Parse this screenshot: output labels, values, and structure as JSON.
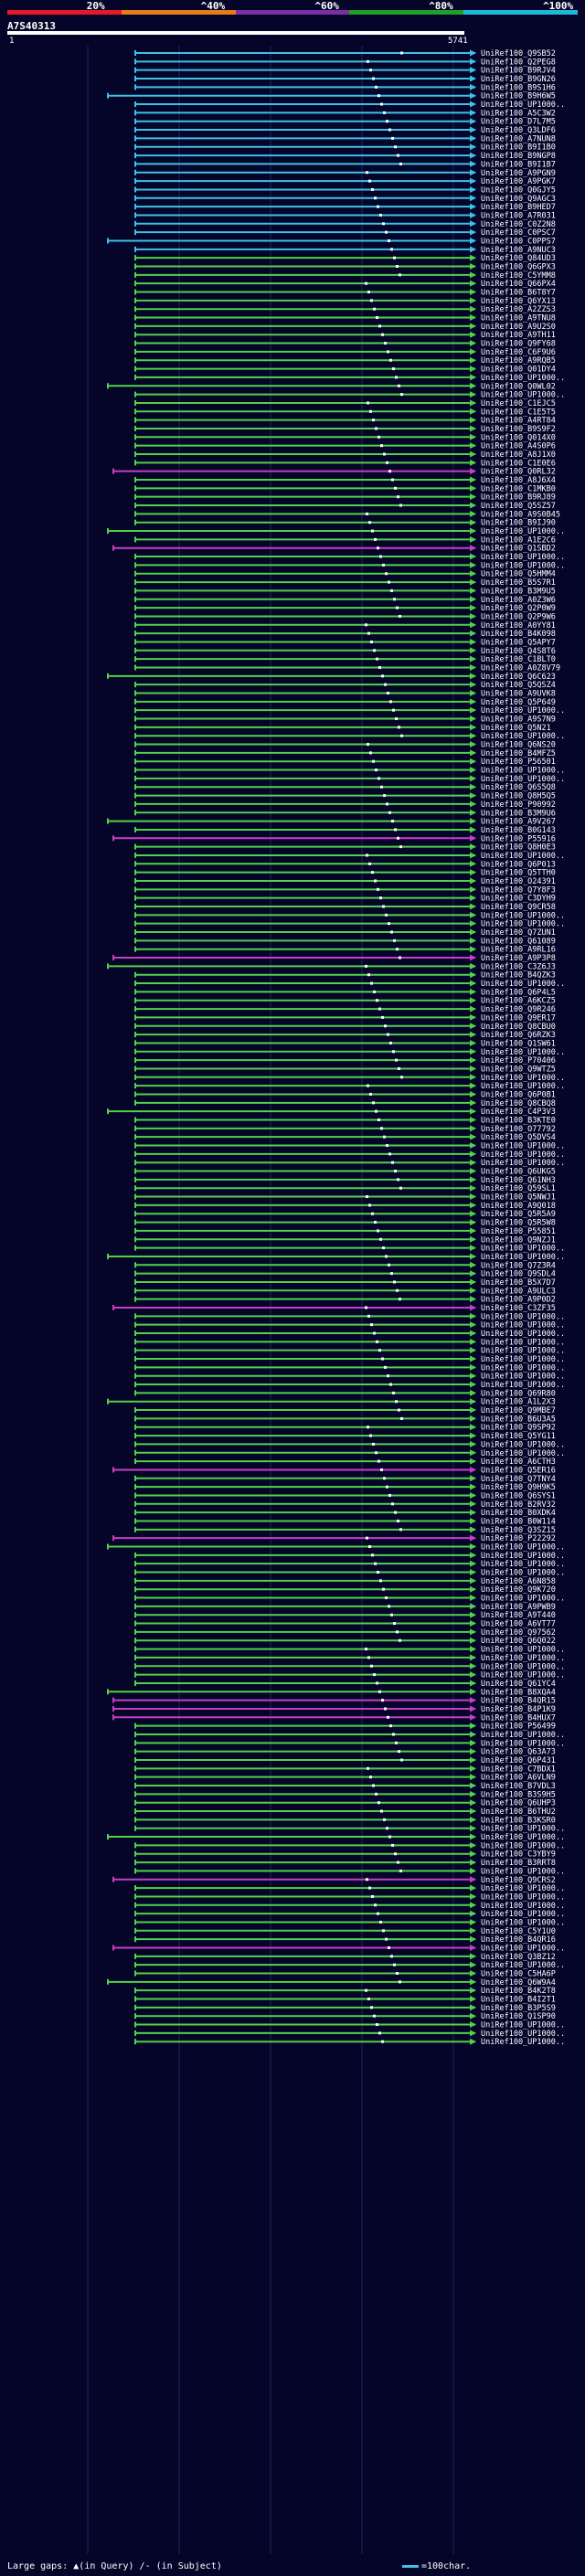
{
  "scale": {
    "labels": [
      "20%",
      "^40%",
      "^60%",
      "^80%",
      "^100%"
    ],
    "bands": [
      "#e8182a",
      "#e87b1e",
      "#7a2fa3",
      "#1f9e2b",
      "#1fb9d8"
    ]
  },
  "query": {
    "id": "A7S40313",
    "start": "1",
    "end": "5741"
  },
  "colors": {
    "cyan": "#3ec1e6",
    "green": "#52d246",
    "magenta": "#c83ec3",
    "dark": "#060630",
    "grid": "#232356"
  },
  "hits": [
    {
      "label": "UniRef100_Q9SB52",
      "color": "cyan"
    },
    {
      "label": "UniRef100_Q2PEG8",
      "color": "cyan"
    },
    {
      "label": "UniRef100_B9RJV4",
      "color": "cyan"
    },
    {
      "label": "UniRef100_B9GN26",
      "color": "cyan"
    },
    {
      "label": "UniRef100_B9S1H6",
      "color": "cyan"
    },
    {
      "label": "UniRef100_B9H6W5",
      "color": "cyan"
    },
    {
      "label": "UniRef100_UP1000..",
      "color": "cyan"
    },
    {
      "label": "UniRef100_A5C3W2",
      "color": "cyan"
    },
    {
      "label": "UniRef100_D7L7M5",
      "color": "cyan"
    },
    {
      "label": "UniRef100_Q3LDF6",
      "color": "cyan"
    },
    {
      "label": "UniRef100_A7NUN8",
      "color": "cyan"
    },
    {
      "label": "UniRef100_B9I1B0",
      "color": "cyan"
    },
    {
      "label": "UniRef100_B9NGP8",
      "color": "cyan"
    },
    {
      "label": "UniRef100_B9I1B7",
      "color": "cyan"
    },
    {
      "label": "UniRef100_A9PGN9",
      "color": "cyan"
    },
    {
      "label": "UniRef100_A9PGK7",
      "color": "cyan"
    },
    {
      "label": "UniRef100_Q0GJY5",
      "color": "cyan"
    },
    {
      "label": "UniRef100_Q9AGC3",
      "color": "cyan"
    },
    {
      "label": "UniRef100_B9HED7",
      "color": "cyan"
    },
    {
      "label": "UniRef100_A7R031",
      "color": "cyan"
    },
    {
      "label": "UniRef100_C0Z2N8",
      "color": "cyan"
    },
    {
      "label": "UniRef100_C0PSC7",
      "color": "cyan"
    },
    {
      "label": "UniRef100_C0PPS7",
      "color": "cyan"
    },
    {
      "label": "UniRef100_A9NUC3",
      "color": "cyan"
    },
    {
      "label": "UniRef100_Q84UD3",
      "color": "green"
    },
    {
      "label": "UniRef100_Q6GPX3",
      "color": "green"
    },
    {
      "label": "UniRef100_C5YMM8",
      "color": "green"
    },
    {
      "label": "UniRef100_Q66PX4",
      "color": "green"
    },
    {
      "label": "UniRef100_B6T8Y7",
      "color": "green"
    },
    {
      "label": "UniRef100_Q6YX13",
      "color": "green"
    },
    {
      "label": "UniRef100_A2ZZS3",
      "color": "green"
    },
    {
      "label": "UniRef100_A9TNU8",
      "color": "green"
    },
    {
      "label": "UniRef100_A9U2S0",
      "color": "green"
    },
    {
      "label": "UniRef100_A9TH11",
      "color": "green"
    },
    {
      "label": "UniRef100_Q9FY68",
      "color": "green"
    },
    {
      "label": "UniRef100_C6F9U6",
      "color": "green"
    },
    {
      "label": "UniRef100_A9RQB5",
      "color": "green"
    },
    {
      "label": "UniRef100_Q01DY4",
      "color": "green"
    },
    {
      "label": "UniRef100_UP1000..",
      "color": "green"
    },
    {
      "label": "UniRef100_Q0WL02",
      "color": "green"
    },
    {
      "label": "UniRef100_UP1000..",
      "color": "green"
    },
    {
      "label": "UniRef100_C1EJC5",
      "color": "green"
    },
    {
      "label": "UniRef100_C1E5T5",
      "color": "green"
    },
    {
      "label": "UniRef100_A4RT84",
      "color": "green"
    },
    {
      "label": "UniRef100_B9S9F2",
      "color": "green"
    },
    {
      "label": "UniRef100_Q014X0",
      "color": "green"
    },
    {
      "label": "UniRef100_A4S0P6",
      "color": "green"
    },
    {
      "label": "UniRef100_A8J1X0",
      "color": "green"
    },
    {
      "label": "UniRef100_C1E0E6",
      "color": "green"
    },
    {
      "label": "UniRef100_Q0RL32",
      "color": "magenta"
    },
    {
      "label": "UniRef100_A8J6X4",
      "color": "green"
    },
    {
      "label": "UniRef100_C1MKB0",
      "color": "green"
    },
    {
      "label": "UniRef100_B9RJ89",
      "color": "green"
    },
    {
      "label": "UniRef100_Q5SZ57",
      "color": "green"
    },
    {
      "label": "UniRef100_A9S0B45",
      "color": "green"
    },
    {
      "label": "UniRef100_B9IJ90",
      "color": "green"
    },
    {
      "label": "UniRef100_UP1000..",
      "color": "green"
    },
    {
      "label": "UniRef100_A1E2C6",
      "color": "green"
    },
    {
      "label": "UniRef100_Q1SBD2",
      "color": "magenta"
    },
    {
      "label": "UniRef100_UP1000..",
      "color": "green"
    },
    {
      "label": "UniRef100_UP1000..",
      "color": "green"
    },
    {
      "label": "UniRef100_Q5HMM4",
      "color": "green"
    },
    {
      "label": "UniRef100_B5S7R1",
      "color": "green"
    },
    {
      "label": "UniRef100_B3M9U5",
      "color": "green"
    },
    {
      "label": "UniRef100_A0Z3W6",
      "color": "green"
    },
    {
      "label": "UniRef100_Q2P0W9",
      "color": "green"
    },
    {
      "label": "UniRef100_Q2P9W6",
      "color": "green"
    },
    {
      "label": "UniRef100_A0YY81",
      "color": "green"
    },
    {
      "label": "UniRef100_B4K098",
      "color": "green"
    },
    {
      "label": "UniRef100_Q5APY7",
      "color": "green"
    },
    {
      "label": "UniRef100_Q4S8T6",
      "color": "green"
    },
    {
      "label": "UniRef100_C1BLT0",
      "color": "green"
    },
    {
      "label": "UniRef100_A0Z8V79",
      "color": "green"
    },
    {
      "label": "UniRef100_Q6C623",
      "color": "green"
    },
    {
      "label": "UniRef100_Q5QSZ4",
      "color": "green"
    },
    {
      "label": "UniRef100_A9UVK8",
      "color": "green"
    },
    {
      "label": "UniRef100_Q5P649",
      "color": "green"
    },
    {
      "label": "UniRef100_UP1000..",
      "color": "green"
    },
    {
      "label": "UniRef100_A9S7N9",
      "color": "green"
    },
    {
      "label": "UniRef100_Q5N21",
      "color": "green"
    },
    {
      "label": "UniRef100_UP1000..",
      "color": "green"
    },
    {
      "label": "UniRef100_Q6NS20",
      "color": "green"
    },
    {
      "label": "UniRef100_B4MFZ5",
      "color": "green"
    },
    {
      "label": "UniRef100_P56501",
      "color": "green"
    },
    {
      "label": "UniRef100_UP1000..",
      "color": "green"
    },
    {
      "label": "UniRef100_UP1000..",
      "color": "green"
    },
    {
      "label": "UniRef100_Q6S5Q8",
      "color": "green"
    },
    {
      "label": "UniRef100_Q8H5Q5",
      "color": "green"
    },
    {
      "label": "UniRef100_P90992",
      "color": "green"
    },
    {
      "label": "UniRef100_B3M9U6",
      "color": "green"
    },
    {
      "label": "UniRef100_A9V267",
      "color": "green"
    },
    {
      "label": "UniRef100_B0G143",
      "color": "green"
    },
    {
      "label": "UniRef100_P55916",
      "color": "magenta"
    },
    {
      "label": "UniRef100_Q8H0E3",
      "color": "green"
    },
    {
      "label": "UniRef100_UP1000..",
      "color": "green"
    },
    {
      "label": "UniRef100_Q6P013",
      "color": "green"
    },
    {
      "label": "UniRef100_Q5TTH0",
      "color": "green"
    },
    {
      "label": "UniRef100_O24391",
      "color": "green"
    },
    {
      "label": "UniRef100_Q7Y8F3",
      "color": "green"
    },
    {
      "label": "UniRef100_C3DYH9",
      "color": "green"
    },
    {
      "label": "UniRef100_Q9CR58",
      "color": "green"
    },
    {
      "label": "UniRef100_UP1000..",
      "color": "green"
    },
    {
      "label": "UniRef100_UP1000..",
      "color": "green"
    },
    {
      "label": "UniRef100_Q7ZUN1",
      "color": "green"
    },
    {
      "label": "UniRef100_Q61089",
      "color": "green"
    },
    {
      "label": "UniRef100_A9RL16",
      "color": "green"
    },
    {
      "label": "UniRef100_A9P3P8",
      "color": "magenta"
    },
    {
      "label": "UniRef100_C3Z6J3",
      "color": "green"
    },
    {
      "label": "UniRef100_B4QZK3",
      "color": "green"
    },
    {
      "label": "UniRef100_UP1000..",
      "color": "green"
    },
    {
      "label": "UniRef100_Q6P4L5",
      "color": "green"
    },
    {
      "label": "UniRef100_A6KCZ5",
      "color": "green"
    },
    {
      "label": "UniRef100_Q9R246",
      "color": "green"
    },
    {
      "label": "UniRef100_Q9ER17",
      "color": "green"
    },
    {
      "label": "UniRef100_Q8CBU0",
      "color": "green"
    },
    {
      "label": "UniRef100_Q6RZK3",
      "color": "green"
    },
    {
      "label": "UniRef100_Q1SW61",
      "color": "green"
    },
    {
      "label": "UniRef100_UP1000..",
      "color": "green"
    },
    {
      "label": "UniRef100_P70406",
      "color": "green"
    },
    {
      "label": "UniRef100_Q9WTZ5",
      "color": "green"
    },
    {
      "label": "UniRef100_UP1000..",
      "color": "green"
    },
    {
      "label": "UniRef100_UP1000..",
      "color": "green"
    },
    {
      "label": "UniRef100_Q6P0B1",
      "color": "green"
    },
    {
      "label": "UniRef100_Q8CBQ8",
      "color": "green"
    },
    {
      "label": "UniRef100_C4P3V3",
      "color": "green"
    },
    {
      "label": "UniRef100_B3KTE0",
      "color": "green"
    },
    {
      "label": "UniRef100_O77792",
      "color": "green"
    },
    {
      "label": "UniRef100_Q5DVS4",
      "color": "green"
    },
    {
      "label": "UniRef100_UP1000..",
      "color": "green"
    },
    {
      "label": "UniRef100_UP1000..",
      "color": "green"
    },
    {
      "label": "UniRef100_UP1000..",
      "color": "green"
    },
    {
      "label": "UniRef100_Q6UKG5",
      "color": "green"
    },
    {
      "label": "UniRef100_Q61NH3",
      "color": "green"
    },
    {
      "label": "UniRef100_Q59SL1",
      "color": "green"
    },
    {
      "label": "UniRef100_Q5NWJ1",
      "color": "green"
    },
    {
      "label": "UniRef100_A9Q018",
      "color": "green"
    },
    {
      "label": "UniRef100_Q5R5A9",
      "color": "green"
    },
    {
      "label": "UniRef100_Q5R5W8",
      "color": "green"
    },
    {
      "label": "UniRef100_P55851",
      "color": "green"
    },
    {
      "label": "UniRef100_Q9NZJ1",
      "color": "green"
    },
    {
      "label": "UniRef100_UP1000..",
      "color": "green"
    },
    {
      "label": "UniRef100_UP1000..",
      "color": "green"
    },
    {
      "label": "UniRef100_Q7Z3R4",
      "color": "green"
    },
    {
      "label": "UniRef100_Q9SDL4",
      "color": "green"
    },
    {
      "label": "UniRef100_B5X7D7",
      "color": "green"
    },
    {
      "label": "UniRef100_A9ULC3",
      "color": "green"
    },
    {
      "label": "UniRef100_A9P0D2",
      "color": "green"
    },
    {
      "label": "UniRef100_C3ZF35",
      "color": "magenta"
    },
    {
      "label": "UniRef100_UP1000..",
      "color": "green"
    },
    {
      "label": "UniRef100_UP1000..",
      "color": "green"
    },
    {
      "label": "UniRef100_UP1000..",
      "color": "green"
    },
    {
      "label": "UniRef100_UP1000..",
      "color": "green"
    },
    {
      "label": "UniRef100_UP1000..",
      "color": "green"
    },
    {
      "label": "UniRef100_UP1000..",
      "color": "green"
    },
    {
      "label": "UniRef100_UP1000..",
      "color": "green"
    },
    {
      "label": "UniRef100_UP1000..",
      "color": "green"
    },
    {
      "label": "UniRef100_UP1000..",
      "color": "green"
    },
    {
      "label": "UniRef100_Q69R80",
      "color": "green"
    },
    {
      "label": "UniRef100_A1L2X3",
      "color": "green"
    },
    {
      "label": "UniRef100_Q9MBE7",
      "color": "green"
    },
    {
      "label": "UniRef100_B6U3A5",
      "color": "green"
    },
    {
      "label": "UniRef100_Q9SP92",
      "color": "green"
    },
    {
      "label": "UniRef100_Q5YG11",
      "color": "green"
    },
    {
      "label": "UniRef100_UP1000..",
      "color": "green"
    },
    {
      "label": "UniRef100_UP1000..",
      "color": "green"
    },
    {
      "label": "UniRef100_A6CTH3",
      "color": "green"
    },
    {
      "label": "UniRef100_Q5ER16",
      "color": "magenta"
    },
    {
      "label": "UniRef100_Q7TNY4",
      "color": "green"
    },
    {
      "label": "UniRef100_Q9H9K5",
      "color": "green"
    },
    {
      "label": "UniRef100_Q6SYS1",
      "color": "green"
    },
    {
      "label": "UniRef100_B2RV32",
      "color": "green"
    },
    {
      "label": "UniRef100_B0XDK4",
      "color": "green"
    },
    {
      "label": "UniRef100_B0W114",
      "color": "green"
    },
    {
      "label": "UniRef100_Q3SZ15",
      "color": "green"
    },
    {
      "label": "UniRef100_P22292",
      "color": "magenta"
    },
    {
      "label": "UniRef100_UP1000..",
      "color": "green"
    },
    {
      "label": "UniRef100_UP1000..",
      "color": "green"
    },
    {
      "label": "UniRef100_UP1000..",
      "color": "green"
    },
    {
      "label": "UniRef100_UP1000..",
      "color": "green"
    },
    {
      "label": "UniRef100_A6N858",
      "color": "green"
    },
    {
      "label": "UniRef100_Q9K720",
      "color": "green"
    },
    {
      "label": "UniRef100_UP1000..",
      "color": "green"
    },
    {
      "label": "UniRef100_A9PWB9",
      "color": "green"
    },
    {
      "label": "UniRef100_A9T440",
      "color": "green"
    },
    {
      "label": "UniRef100_A6VT77",
      "color": "green"
    },
    {
      "label": "UniRef100_Q97562",
      "color": "green"
    },
    {
      "label": "UniRef100_Q6Q022",
      "color": "green"
    },
    {
      "label": "UniRef100_UP1000..",
      "color": "green"
    },
    {
      "label": "UniRef100_UP1000..",
      "color": "green"
    },
    {
      "label": "UniRef100_UP1000..",
      "color": "green"
    },
    {
      "label": "UniRef100_UP1000..",
      "color": "green"
    },
    {
      "label": "UniRef100_Q61YC4",
      "color": "green"
    },
    {
      "label": "UniRef100_B8XQA4",
      "color": "green"
    },
    {
      "label": "UniRef100_B4QR15",
      "color": "magenta"
    },
    {
      "label": "UniRef100_B4P1K9",
      "color": "magenta"
    },
    {
      "label": "UniRef100_B4HUX7",
      "color": "magenta"
    },
    {
      "label": "UniRef100_P56499",
      "color": "green"
    },
    {
      "label": "UniRef100_UP1000..",
      "color": "green"
    },
    {
      "label": "UniRef100_UP1000..",
      "color": "green"
    },
    {
      "label": "UniRef100_Q63A73",
      "color": "green"
    },
    {
      "label": "UniRef100_Q6P431",
      "color": "green"
    },
    {
      "label": "UniRef100_C7BDX1",
      "color": "green"
    },
    {
      "label": "UniRef100_A6VLN9",
      "color": "green"
    },
    {
      "label": "UniRef100_B7VDL3",
      "color": "green"
    },
    {
      "label": "UniRef100_B3S9H5",
      "color": "green"
    },
    {
      "label": "UniRef100_Q6UHP3",
      "color": "green"
    },
    {
      "label": "UniRef100_B6THU2",
      "color": "green"
    },
    {
      "label": "UniRef100_B3KSR0",
      "color": "green"
    },
    {
      "label": "UniRef100_UP1000..",
      "color": "green"
    },
    {
      "label": "UniRef100_UP1000..",
      "color": "green"
    },
    {
      "label": "UniRef100_UP1000..",
      "color": "green"
    },
    {
      "label": "UniRef100_C3YBY9",
      "color": "green"
    },
    {
      "label": "UniRef100_B3RRT8",
      "color": "green"
    },
    {
      "label": "UniRef100_UP1000..",
      "color": "green"
    },
    {
      "label": "UniRef100_Q9CRS2",
      "color": "magenta"
    },
    {
      "label": "UniRef100_UP1000..",
      "color": "green"
    },
    {
      "label": "UniRef100_UP1000..",
      "color": "green"
    },
    {
      "label": "UniRef100_UP1000..",
      "color": "green"
    },
    {
      "label": "UniRef100_UP1000..",
      "color": "green"
    },
    {
      "label": "UniRef100_UP1000..",
      "color": "green"
    },
    {
      "label": "UniRef100_C5Y1U0",
      "color": "green"
    },
    {
      "label": "UniRef100_B4QR16",
      "color": "green"
    },
    {
      "label": "UniRef100_UP1000..",
      "color": "magenta"
    },
    {
      "label": "UniRef100_Q3BZ12",
      "color": "green"
    },
    {
      "label": "UniRef100_UP1000..",
      "color": "green"
    },
    {
      "label": "UniRef100_C5HA6P",
      "color": "green"
    },
    {
      "label": "UniRef100_Q6W9A4",
      "color": "green"
    },
    {
      "label": "UniRef100_B4K2T8",
      "color": "green"
    },
    {
      "label": "UniRef100_B4I2T1",
      "color": "green"
    },
    {
      "label": "UniRef100_B3P5S9",
      "color": "green"
    },
    {
      "label": "UniRef100_Q1SP90",
      "color": "green"
    },
    {
      "label": "UniRef100_UP1000..",
      "color": "green"
    },
    {
      "label": "UniRef100_UP1000..",
      "color": "green"
    },
    {
      "label": "UniRef100_UP1000..",
      "color": "green"
    }
  ],
  "footer": {
    "gaps_label": "Large gaps:",
    "in_query": "(in Query)",
    "in_subject": "(in Subject)",
    "scale_note": "=100char."
  }
}
